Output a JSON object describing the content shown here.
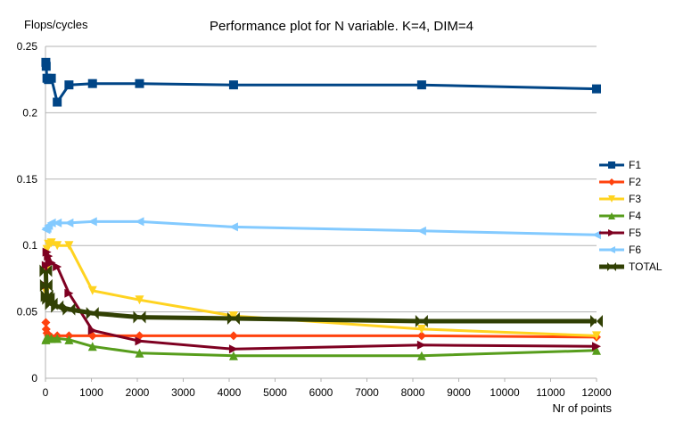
{
  "chart_data": {
    "type": "line",
    "title": "Performance plot for N variable. K=4, DIM=4",
    "ylabel": "Flops/cycles",
    "xlabel": "Nr of points",
    "xlim": [
      0,
      12000
    ],
    "ylim": [
      0,
      0.25
    ],
    "x_ticks": [
      0,
      1000,
      2000,
      3000,
      4000,
      5000,
      6000,
      7000,
      8000,
      9000,
      10000,
      11000,
      12000
    ],
    "y_ticks": [
      0,
      0.05,
      0.1,
      0.15,
      0.2,
      0.25
    ],
    "y_tick_labels": [
      "0",
      "0.05",
      "0.1",
      "0.15",
      "0.2",
      "0.25"
    ],
    "grid": true,
    "legend_position": "right",
    "series": [
      {
        "name": "F1",
        "color": "#004586",
        "marker": "square",
        "x": [
          8,
          16,
          32,
          64,
          128,
          256,
          512,
          1024,
          2048,
          4096,
          8192,
          12000
        ],
        "y": [
          0.238,
          0.235,
          0.226,
          0.225,
          0.226,
          0.208,
          0.221,
          0.222,
          0.222,
          0.221,
          0.221,
          0.218
        ]
      },
      {
        "name": "F2",
        "color": "#ff420e",
        "marker": "diamond",
        "x": [
          8,
          16,
          32,
          64,
          128,
          256,
          512,
          1024,
          2048,
          4096,
          8192,
          12000
        ],
        "y": [
          0.042,
          0.037,
          0.034,
          0.032,
          0.031,
          0.032,
          0.032,
          0.032,
          0.032,
          0.032,
          0.032,
          0.031
        ]
      },
      {
        "name": "F3",
        "color": "#ffd320",
        "marker": "triangle-down",
        "x": [
          8,
          16,
          32,
          64,
          128,
          256,
          512,
          1024,
          2048,
          4096,
          8192,
          12000
        ],
        "y": [
          0.065,
          0.082,
          0.097,
          0.101,
          0.102,
          0.1,
          0.1,
          0.066,
          0.059,
          0.047,
          0.037,
          0.032
        ]
      },
      {
        "name": "F4",
        "color": "#579d1c",
        "marker": "triangle-up",
        "x": [
          8,
          16,
          32,
          64,
          128,
          256,
          512,
          1024,
          2048,
          4096,
          8192,
          12000
        ],
        "y": [
          0.029,
          0.03,
          0.03,
          0.03,
          0.03,
          0.03,
          0.029,
          0.024,
          0.019,
          0.017,
          0.017,
          0.021
        ]
      },
      {
        "name": "F5",
        "color": "#7e0021",
        "marker": "triangle-right",
        "x": [
          8,
          16,
          32,
          64,
          128,
          256,
          512,
          1024,
          2048,
          4096,
          8192,
          12000
        ],
        "y": [
          0.07,
          0.085,
          0.095,
          0.092,
          0.087,
          0.084,
          0.064,
          0.036,
          0.028,
          0.022,
          0.025,
          0.024
        ]
      },
      {
        "name": "F6",
        "color": "#83caff",
        "marker": "triangle-left",
        "x": [
          8,
          16,
          32,
          64,
          128,
          256,
          512,
          1024,
          2048,
          4096,
          8192,
          12000
        ],
        "y": [
          0.112,
          0.113,
          0.113,
          0.115,
          0.117,
          0.117,
          0.117,
          0.118,
          0.118,
          0.114,
          0.111,
          0.108
        ]
      },
      {
        "name": "TOTAL",
        "color": "#314004",
        "marker": "bowtie",
        "x": [
          8,
          16,
          32,
          64,
          128,
          256,
          512,
          1024,
          2048,
          4096,
          8192,
          12000
        ],
        "y": [
          0.081,
          0.07,
          0.062,
          0.06,
          0.056,
          0.054,
          0.052,
          0.049,
          0.046,
          0.045,
          0.043,
          0.043
        ]
      }
    ]
  }
}
